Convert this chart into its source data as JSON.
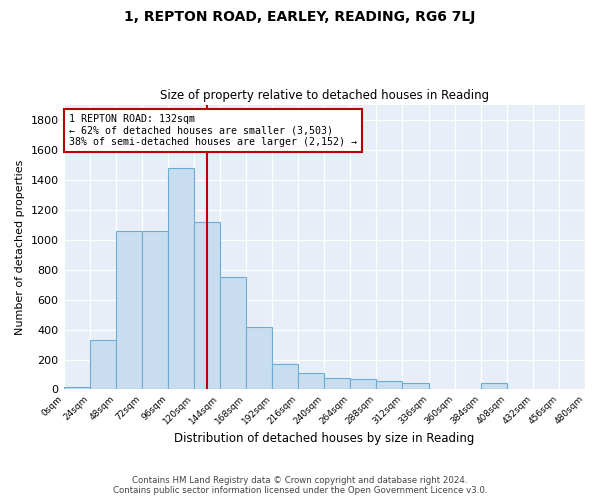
{
  "title": "1, REPTON ROAD, EARLEY, READING, RG6 7LJ",
  "subtitle": "Size of property relative to detached houses in Reading",
  "xlabel": "Distribution of detached houses by size in Reading",
  "ylabel": "Number of detached properties",
  "bar_color": "#c9ddf0",
  "bar_edge_color": "#6aaed6",
  "background_color": "#e8eef8",
  "grid_color": "#ffffff",
  "annotation_line_color": "#bb0000",
  "annotation_box_color": "#bb0000",
  "footer_line1": "Contains HM Land Registry data © Crown copyright and database right 2024.",
  "footer_line2": "Contains public sector information licensed under the Open Government Licence v3.0.",
  "property_size": 132,
  "annotation_text_line1": "1 REPTON ROAD: 132sqm",
  "annotation_text_line2": "← 62% of detached houses are smaller (3,503)",
  "annotation_text_line3": "38% of semi-detached houses are larger (2,152) →",
  "bin_edges": [
    0,
    24,
    48,
    72,
    96,
    120,
    144,
    168,
    192,
    216,
    240,
    264,
    288,
    312,
    336,
    360,
    384,
    408,
    432,
    456,
    480
  ],
  "bar_heights": [
    15,
    330,
    1060,
    1060,
    1480,
    1120,
    750,
    415,
    170,
    110,
    80,
    70,
    60,
    45,
    0,
    0,
    45,
    0,
    0,
    0
  ],
  "ylim": [
    0,
    1900
  ],
  "yticks": [
    0,
    200,
    400,
    600,
    800,
    1000,
    1200,
    1400,
    1600,
    1800
  ]
}
